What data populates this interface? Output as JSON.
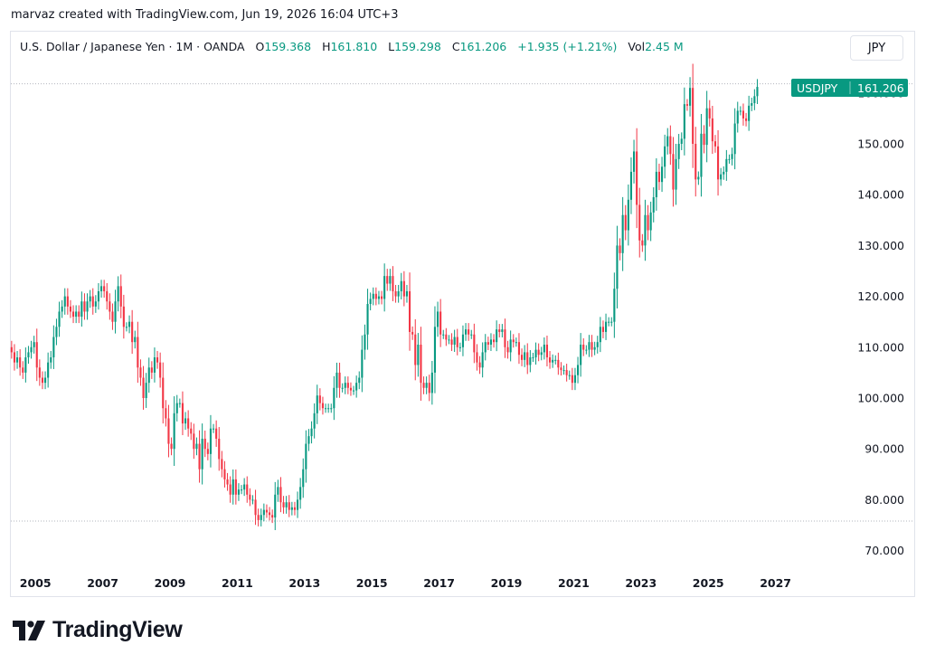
{
  "attribution": "marvaz created with TradingView.com, Jun 19, 2026 16:04 UTC+3",
  "legend": {
    "symbol_desc": "U.S. Dollar / Japanese Yen · 1M · OANDA",
    "open_label": "O",
    "open": "159.368",
    "high_label": "H",
    "high": "161.810",
    "low_label": "L",
    "low": "159.298",
    "close_label": "C",
    "close": "161.206",
    "change": "+1.935 (+1.21%)",
    "vol_label": "Vol",
    "vol": "2.45 M"
  },
  "currency_button": "JPY",
  "price_tag": {
    "symbol": "USDJPY",
    "price": "161.206"
  },
  "logo_text": "TradingView",
  "colors": {
    "up": "#089981",
    "down": "#f23645",
    "grid_dot": "#b2b5be"
  },
  "chart_data": {
    "type": "candlestick",
    "interval": "1M",
    "symbol": "USDJPY",
    "ylim": [
      65,
      162
    ],
    "y_ticks": [
      "70.000",
      "80.000",
      "90.000",
      "100.000",
      "110.000",
      "120.000",
      "130.000",
      "140.000",
      "150.000",
      "160.000"
    ],
    "y_tick_values": [
      70,
      80,
      90,
      100,
      110,
      120,
      130,
      140,
      150,
      160
    ],
    "x_ticks": [
      "2005",
      "2007",
      "2009",
      "2011",
      "2013",
      "2015",
      "2017",
      "2019",
      "2021",
      "2023",
      "2025",
      "2027"
    ],
    "x_tick_years": [
      2005,
      2007,
      2009,
      2011,
      2013,
      2015,
      2017,
      2019,
      2021,
      2023,
      2025,
      2027
    ],
    "xlim_years": [
      2004.0,
      2027.8
    ],
    "start_year": 2004.0,
    "reference_lines": [
      161.8,
      75.8
    ],
    "monthly_close": [
      120.0,
      111.0,
      110.0,
      109.0,
      107.0,
      108.0,
      106.0,
      105.0,
      108.0,
      109.0,
      110.0,
      111.0,
      106.0,
      104.0,
      103.0,
      104.0,
      107.0,
      108.0,
      112.0,
      114.0,
      117.0,
      118.0,
      120.0,
      118.0,
      117.0,
      116.0,
      117.0,
      116.0,
      119.0,
      117.0,
      119.0,
      120.0,
      118.0,
      119.0,
      121.0,
      122.0,
      121.0,
      119.0,
      117.0,
      115.0,
      119.0,
      122.0,
      118.0,
      114.0,
      114.0,
      115.0,
      111.0,
      112.0,
      106.0,
      104.0,
      100.0,
      103.0,
      106.0,
      105.0,
      108.0,
      107.0,
      104.0,
      98.0,
      96.0,
      91.0,
      90.0,
      97.0,
      99.0,
      99.0,
      95.0,
      96.0,
      94.0,
      93.0,
      90.0,
      91.0,
      86.0,
      92.0,
      90.0,
      89.0,
      94.0,
      94.0,
      92.0,
      88.0,
      86.0,
      84.0,
      83.0,
      81.0,
      84.0,
      81.0,
      82.0,
      82.0,
      83.0,
      81.0,
      80.0,
      80.0,
      77.0,
      76.0,
      77.0,
      78.0,
      77.5,
      77.0,
      76.5,
      81.0,
      82.5,
      79.5,
      78.5,
      79.5,
      78.0,
      78.5,
      78.0,
      80.0,
      82.5,
      86.0,
      91.0,
      92.5,
      94.0,
      97.0,
      100.5,
      99.0,
      98.0,
      98.0,
      98.0,
      98.0,
      102.0,
      105.0,
      102.0,
      102.0,
      103.0,
      102.0,
      101.5,
      101.5,
      103.0,
      104.0,
      109.5,
      112.5,
      118.5,
      119.5,
      120.5,
      119.5,
      120.0,
      119.5,
      124.0,
      122.5,
      124.0,
      121.0,
      120.0,
      121.0,
      123.0,
      120.0,
      121.0,
      113.0,
      112.5,
      106.5,
      110.5,
      103.0,
      102.0,
      103.0,
      101.0,
      105.0,
      114.0,
      117.0,
      112.5,
      112.5,
      111.5,
      111.5,
      110.5,
      112.0,
      110.0,
      110.0,
      112.5,
      113.5,
      112.5,
      112.5,
      109.0,
      107.0,
      106.0,
      109.0,
      111.0,
      110.5,
      111.5,
      111.0,
      113.5,
      113.0,
      113.5,
      110.0,
      109.0,
      111.5,
      111.0,
      111.0,
      108.5,
      107.5,
      109.0,
      106.5,
      108.0,
      108.0,
      109.5,
      108.5,
      109.0,
      110.5,
      108.0,
      107.0,
      107.5,
      107.5,
      106.0,
      105.5,
      105.5,
      104.5,
      104.5,
      103.0,
      104.5,
      106.5,
      110.5,
      109.5,
      109.5,
      111.0,
      109.5,
      110.0,
      111.0,
      114.0,
      113.0,
      115.0,
      115.0,
      115.0,
      121.5,
      130.0,
      128.5,
      136.0,
      133.0,
      139.0,
      144.5,
      148.5,
      138.0,
      131.0,
      130.0,
      136.0,
      133.0,
      136.5,
      139.5,
      144.5,
      142.5,
      145.5,
      149.5,
      151.5,
      148.0,
      141.0,
      147.0,
      150.0,
      151.0,
      157.8,
      157.5,
      161.0,
      150.0,
      143.0,
      143.5,
      152.0,
      149.8,
      157.0,
      155.0,
      150.5,
      149.5,
      143.0,
      144.0,
      144.5,
      147.0,
      147.0,
      148.0,
      154.0,
      156.5,
      156.5,
      155.0,
      154.5,
      157.5,
      158.0,
      159.37,
      161.2
    ]
  }
}
